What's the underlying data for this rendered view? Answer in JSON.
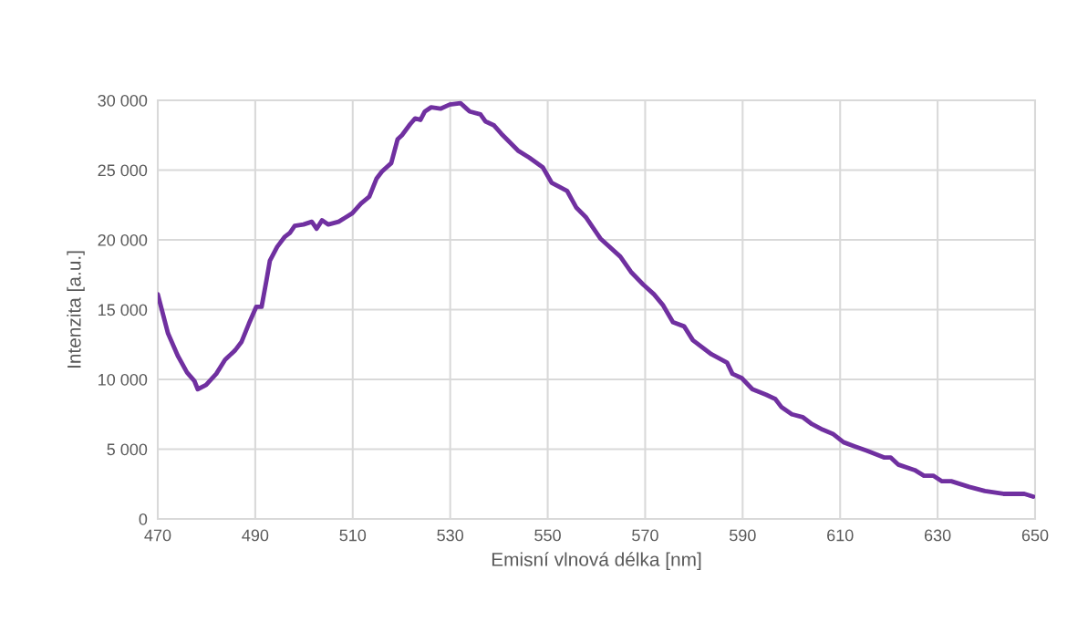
{
  "chart_data": {
    "type": "line",
    "xlabel": "Emisní vlnová délka [nm]",
    "ylabel": "Intenzita [a.u.]",
    "xlim": [
      470,
      650
    ],
    "xticks": [
      470,
      490,
      510,
      530,
      550,
      570,
      590,
      610,
      630,
      650
    ],
    "ylim": [
      0,
      30000
    ],
    "yticks": [
      0,
      {
        "value": 5000,
        "label": "5 000"
      },
      {
        "value": 10000,
        "label": "10 000"
      },
      {
        "value": 15000,
        "label": "15 000"
      },
      {
        "value": 20000,
        "label": "20 000"
      },
      {
        "value": 25000,
        "label": "25 000"
      },
      {
        "value": 30000,
        "label": "30 000"
      }
    ],
    "grid": true,
    "marker": "none",
    "line_style": "solid",
    "series": [
      {
        "color": "#7030a0",
        "x": [
          470.0,
          472.1,
          474.1,
          476.0,
          477.5,
          478.2,
          479.9,
          482.0,
          483.8,
          485.9,
          487.2,
          488.7,
          490.2,
          491.3,
          492.3,
          493.0,
          494.5,
          496.0,
          497.1,
          498.1,
          499.9,
          501.6,
          502.6,
          503.7,
          505.0,
          507.1,
          508.5,
          509.9,
          511.7,
          513.4,
          514.9,
          516.0,
          517.9,
          519.2,
          520.1,
          521.8,
          522.8,
          523.9,
          524.8,
          526.1,
          528.0,
          529.9,
          532.1,
          534.0,
          536.2,
          537.2,
          539.0,
          540.5,
          543.9,
          546.2,
          549.0,
          550.8,
          554.0,
          555.9,
          557.9,
          560.8,
          564.9,
          567.1,
          569.6,
          571.8,
          573.7,
          575.7,
          578.0,
          579.8,
          583.6,
          586.8,
          587.9,
          589.8,
          592.0,
          594.8,
          596.7,
          598.0,
          600.1,
          602.3,
          604.2,
          606.4,
          608.5,
          610.7,
          613.0,
          615.4,
          619.1,
          620.4,
          621.9,
          625.3,
          627.2,
          629.1,
          630.9,
          632.8,
          636.5,
          639.7,
          643.5,
          645.3,
          647.8,
          649.6
        ],
        "values": [
          16100,
          13300,
          11700,
          10500,
          9900,
          9300,
          9600,
          10400,
          11400,
          12100,
          12700,
          14000,
          15200,
          15200,
          17100,
          18500,
          19500,
          20200,
          20500,
          21000,
          21100,
          21300,
          20800,
          21400,
          21100,
          21300,
          21600,
          21900,
          22600,
          23100,
          24400,
          24900,
          25500,
          27200,
          27500,
          28300,
          28700,
          28600,
          29200,
          29500,
          29400,
          29700,
          29800,
          29200,
          29000,
          28500,
          28200,
          27600,
          26400,
          25900,
          25200,
          24100,
          23500,
          22300,
          21600,
          20100,
          18800,
          17700,
          16800,
          16100,
          15300,
          14100,
          13800,
          12800,
          11800,
          11200,
          10400,
          10100,
          9300,
          8900,
          8600,
          8000,
          7500,
          7300,
          6800,
          6400,
          6100,
          5500,
          5200,
          4900,
          4400,
          4400,
          3900,
          3500,
          3100,
          3100,
          2700,
          2700,
          2300,
          2000,
          1800,
          1800,
          1800,
          1600
        ]
      }
    ]
  }
}
